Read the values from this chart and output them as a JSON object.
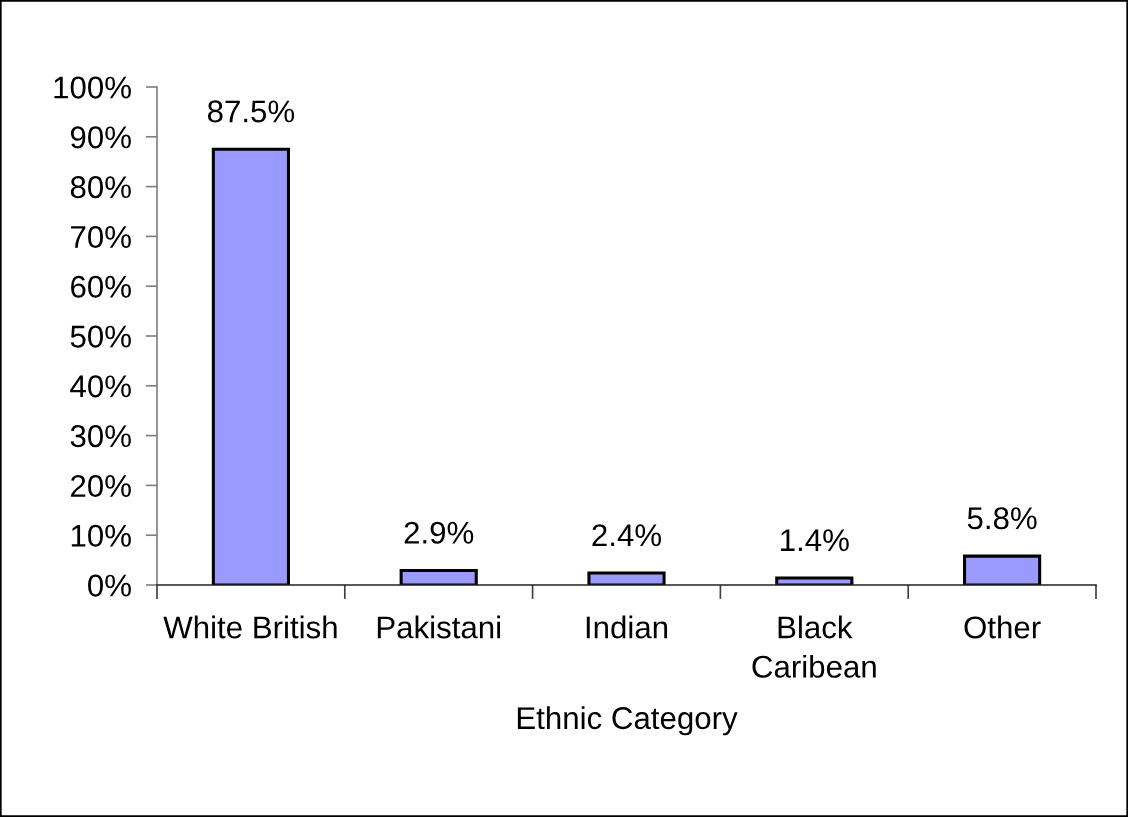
{
  "chart_data": {
    "type": "bar",
    "xlabel": "Ethnic Category",
    "categories": [
      "White British",
      "Pakistani",
      "Indian",
      "Black Caribean",
      "Other"
    ],
    "values": [
      87.5,
      2.9,
      2.4,
      1.4,
      5.8
    ],
    "color": "#9999ff",
    "value_labels": [
      "87.5%",
      "2.9%",
      "2.4%",
      "1.4%",
      "5.8%"
    ],
    "ylim": [
      0,
      100
    ],
    "yticks": [
      {
        "value": 0,
        "label": "0%"
      },
      {
        "value": 10,
        "label": "10%"
      },
      {
        "value": 20,
        "label": "20%"
      },
      {
        "value": 30,
        "label": "30%"
      },
      {
        "value": 40,
        "label": "40%"
      },
      {
        "value": 50,
        "label": "50%"
      },
      {
        "value": 60,
        "label": "60%"
      },
      {
        "value": 70,
        "label": "70%"
      },
      {
        "value": 80,
        "label": "80%"
      },
      {
        "value": 90,
        "label": "90%"
      },
      {
        "value": 100,
        "label": "100%"
      }
    ]
  }
}
